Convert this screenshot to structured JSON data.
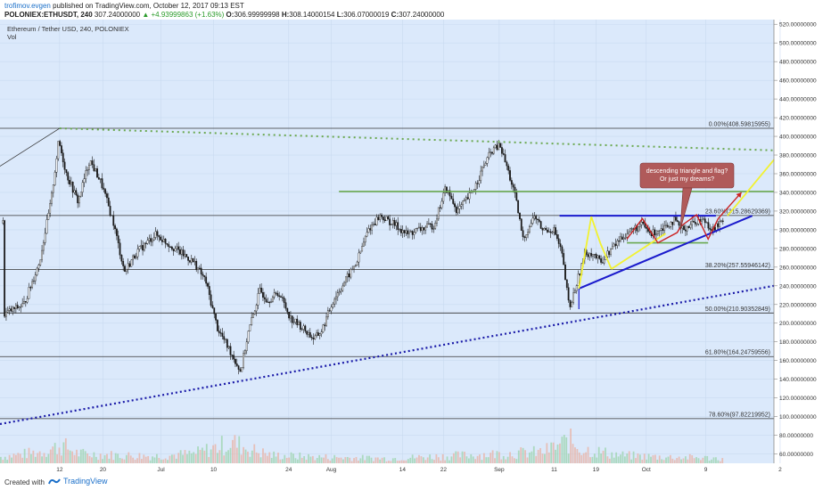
{
  "header": {
    "author": "trofimov.evgen",
    "published": "published on TradingView.com, October 12, 2017 09:13 EST",
    "symbol": "POLONIEX:ETHUSDT, 240",
    "last": "307.24000000",
    "change": "▲ +4.93999863 (+1.63%)",
    "o_label": "O:",
    "o": "306.99999998",
    "h_label": "H:",
    "h": "308.14000154",
    "l_label": "L:",
    "l": "306.07000019",
    "c_label": "C:",
    "c": "307.24000000"
  },
  "legend": {
    "title": "Ethereum / Tether USD, 240, POLONIEX",
    "vol": "Vol"
  },
  "footer": {
    "created": "Created with",
    "brand": "TradingView"
  },
  "colors": {
    "chart_bg": "#dbe9fb",
    "candle": "#1a1a1a",
    "fib": "#333333",
    "blue_line": "#1a1acc",
    "green_line": "#6aa84f",
    "dotted_green": "#6aa84f",
    "dotted_blue": "#1a1aa8",
    "yellow": "#f2f230",
    "red": "#cc2222",
    "callout": "#b05a5a"
  },
  "chart_data": {
    "type": "candlestick",
    "title": "Ethereum / Tether USD, 240, POLONIEX",
    "ylim": [
      50,
      525
    ],
    "y_ticks": [
      "60.00000000",
      "80.00000000",
      "100.00000000",
      "120.00000000",
      "140.00000000",
      "160.00000000",
      "180.00000000",
      "200.00000000",
      "220.00000000",
      "240.00000000",
      "260.00000000",
      "280.00000000",
      "300.00000000",
      "320.00000000",
      "340.00000000",
      "360.00000000",
      "380.00000000",
      "400.00000000",
      "420.00000000",
      "440.00000000",
      "460.00000000",
      "480.00000000",
      "500.00000000",
      "520.00000000"
    ],
    "y_tick_values": [
      60,
      80,
      100,
      120,
      140,
      160,
      180,
      200,
      220,
      240,
      260,
      280,
      300,
      320,
      340,
      360,
      380,
      400,
      420,
      440,
      460,
      480,
      500,
      520
    ],
    "x_ticks": [
      "12",
      "20",
      "Jul",
      "10",
      "24",
      "Aug",
      "14",
      "22",
      "Sep",
      "11",
      "19",
      "Oct",
      "9",
      "2"
    ],
    "fib_levels": [
      {
        "label": "0.00%(408.59815955)",
        "value": 408.6
      },
      {
        "label": "23.60%(315.28629369)",
        "value": 315.29
      },
      {
        "label": "38.20%(257.55946142)",
        "value": 257.56
      },
      {
        "label": "50.00%(210.90352849)",
        "value": 210.9
      },
      {
        "label": "61.80%(164.24759556)",
        "value": 164.25
      },
      {
        "label": "78.60%(97.82219952)",
        "value": 97.82
      }
    ],
    "price_path": [
      [
        0.005,
        210
      ],
      [
        0.03,
        220
      ],
      [
        0.05,
        265
      ],
      [
        0.065,
        330
      ],
      [
        0.075,
        395
      ],
      [
        0.085,
        360
      ],
      [
        0.1,
        330
      ],
      [
        0.115,
        375
      ],
      [
        0.13,
        350
      ],
      [
        0.145,
        310
      ],
      [
        0.16,
        255
      ],
      [
        0.175,
        275
      ],
      [
        0.2,
        295
      ],
      [
        0.225,
        280
      ],
      [
        0.25,
        265
      ],
      [
        0.265,
        245
      ],
      [
        0.28,
        195
      ],
      [
        0.3,
        165
      ],
      [
        0.31,
        148
      ],
      [
        0.32,
        190
      ],
      [
        0.335,
        235
      ],
      [
        0.345,
        225
      ],
      [
        0.36,
        232
      ],
      [
        0.375,
        205
      ],
      [
        0.39,
        195
      ],
      [
        0.405,
        183
      ],
      [
        0.415,
        192
      ],
      [
        0.43,
        225
      ],
      [
        0.445,
        245
      ],
      [
        0.46,
        265
      ],
      [
        0.475,
        300
      ],
      [
        0.49,
        315
      ],
      [
        0.51,
        305
      ],
      [
        0.525,
        295
      ],
      [
        0.54,
        300
      ],
      [
        0.56,
        305
      ],
      [
        0.575,
        345
      ],
      [
        0.59,
        320
      ],
      [
        0.605,
        335
      ],
      [
        0.615,
        350
      ],
      [
        0.625,
        370
      ],
      [
        0.635,
        385
      ],
      [
        0.645,
        390
      ],
      [
        0.655,
        365
      ],
      [
        0.665,
        335
      ],
      [
        0.675,
        290
      ],
      [
        0.69,
        315
      ],
      [
        0.7,
        300
      ],
      [
        0.715,
        300
      ],
      [
        0.725,
        275
      ],
      [
        0.735,
        215
      ],
      [
        0.745,
        245
      ],
      [
        0.755,
        275
      ],
      [
        0.765,
        275
      ],
      [
        0.775,
        265
      ],
      [
        0.785,
        275
      ],
      [
        0.8,
        290
      ],
      [
        0.815,
        300
      ],
      [
        0.83,
        305
      ],
      [
        0.84,
        295
      ],
      [
        0.85,
        300
      ],
      [
        0.86,
        305
      ],
      [
        0.87,
        310
      ],
      [
        0.88,
        300
      ],
      [
        0.89,
        305
      ],
      [
        0.9,
        310
      ],
      [
        0.91,
        310
      ],
      [
        0.92,
        300
      ],
      [
        0.93,
        307
      ]
    ],
    "volume_path": [
      [
        0.0,
        8
      ],
      [
        0.05,
        14
      ],
      [
        0.08,
        22
      ],
      [
        0.1,
        12
      ],
      [
        0.15,
        10
      ],
      [
        0.2,
        9
      ],
      [
        0.25,
        12
      ],
      [
        0.3,
        26
      ],
      [
        0.32,
        18
      ],
      [
        0.35,
        10
      ],
      [
        0.4,
        8
      ],
      [
        0.45,
        7
      ],
      [
        0.5,
        6
      ],
      [
        0.55,
        8
      ],
      [
        0.6,
        10
      ],
      [
        0.65,
        12
      ],
      [
        0.7,
        14
      ],
      [
        0.735,
        28
      ],
      [
        0.75,
        18
      ],
      [
        0.8,
        10
      ],
      [
        0.85,
        8
      ],
      [
        0.9,
        7
      ],
      [
        0.93,
        6
      ]
    ],
    "annotations": {
      "callout": "descending triangle and flag?\nOr just my dreams?"
    }
  }
}
